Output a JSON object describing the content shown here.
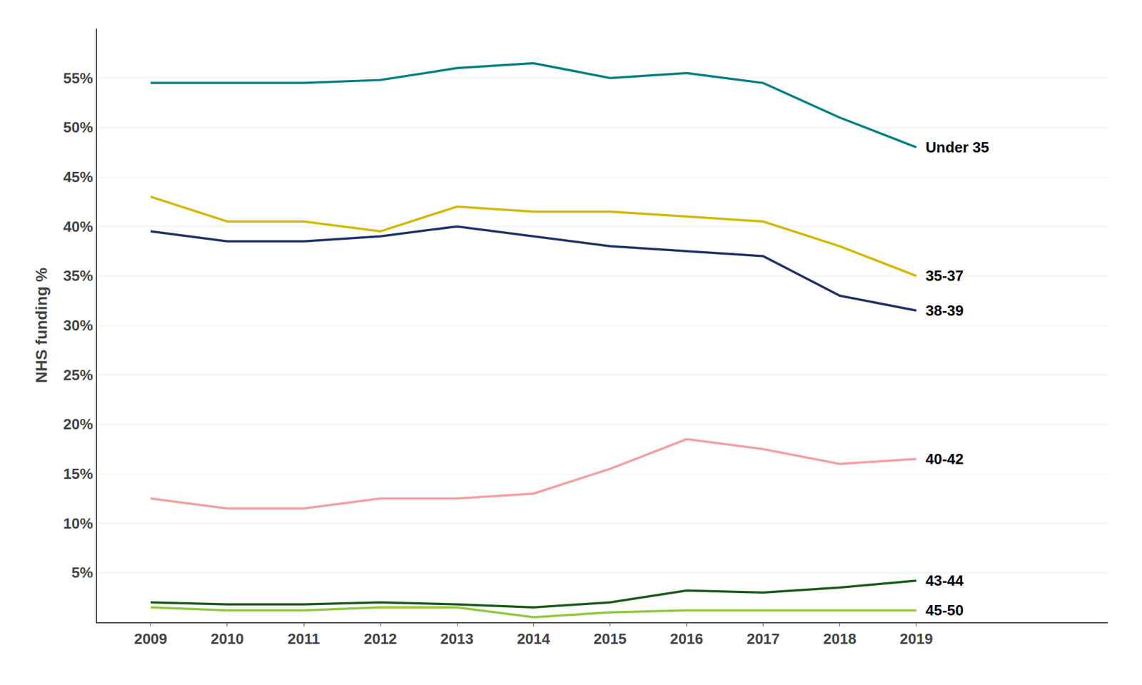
{
  "chart_data": {
    "type": "line",
    "ylabel": "NHS funding %",
    "x": [
      2009,
      2010,
      2011,
      2012,
      2013,
      2014,
      2015,
      2016,
      2017,
      2018,
      2019
    ],
    "series": [
      {
        "name": "Under 35",
        "color": "#008080",
        "values": [
          54.5,
          54.5,
          54.5,
          54.8,
          56.0,
          56.5,
          55.0,
          55.5,
          54.5,
          51.0,
          48.0
        ]
      },
      {
        "name": "35-37",
        "color": "#d4b800",
        "values": [
          43.0,
          40.5,
          40.5,
          39.5,
          42.0,
          41.5,
          41.5,
          41.0,
          40.5,
          38.0,
          35.0
        ]
      },
      {
        "name": "38-39",
        "color": "#1f3268",
        "values": [
          39.5,
          38.5,
          38.5,
          39.0,
          40.0,
          39.0,
          38.0,
          37.5,
          37.0,
          33.0,
          31.5
        ]
      },
      {
        "name": "40-42",
        "color": "#f4a0a0",
        "values": [
          12.5,
          11.5,
          11.5,
          12.5,
          12.5,
          13.0,
          15.5,
          18.5,
          17.5,
          16.0,
          16.5
        ]
      },
      {
        "name": "43-44",
        "color": "#1a5c1a",
        "values": [
          2.0,
          1.8,
          1.8,
          2.0,
          1.8,
          1.5,
          2.0,
          3.2,
          3.0,
          3.5,
          4.2
        ]
      },
      {
        "name": "45-50",
        "color": "#90c840",
        "values": [
          1.5,
          1.2,
          1.2,
          1.5,
          1.5,
          0.5,
          1.0,
          1.2,
          1.2,
          1.2,
          1.2
        ]
      }
    ],
    "xlim": [
      2008.3,
      2021.5
    ],
    "xticks": [
      2009,
      2010,
      2011,
      2012,
      2013,
      2014,
      2015,
      2016,
      2017,
      2018,
      2019
    ],
    "ylim": [
      0,
      60
    ],
    "yticks": [
      {
        "value": 5,
        "label": "5%"
      },
      {
        "value": 10,
        "label": "10%"
      },
      {
        "value": 15,
        "label": "15%"
      },
      {
        "value": 20,
        "label": "20%"
      },
      {
        "value": 25,
        "label": "25%"
      },
      {
        "value": 30,
        "label": "30%"
      },
      {
        "value": 35,
        "label": "35%"
      },
      {
        "value": 40,
        "label": "40%"
      },
      {
        "value": 45,
        "label": "45%"
      },
      {
        "value": 50,
        "label": "50%"
      },
      {
        "value": 55,
        "label": "55%"
      }
    ],
    "grid": true
  }
}
